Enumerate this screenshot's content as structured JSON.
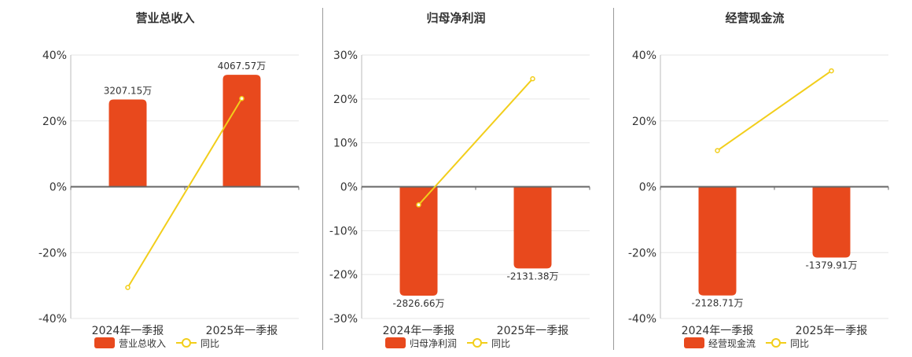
{
  "colors": {
    "bar": "#E8491D",
    "line": "#F2CE1B",
    "axis": "#666666",
    "grid": "#e6e6e6",
    "text": "#333333"
  },
  "chart_data": [
    {
      "type": "bar",
      "title": "营业总收入",
      "categories": [
        "2024年一季报",
        "2025年一季报"
      ],
      "ylim": [
        -40,
        40
      ],
      "ticks": [
        "40%",
        "20%",
        "0%",
        "-20%",
        "-40%"
      ],
      "tick_values": [
        40,
        20,
        0,
        -20,
        -40
      ],
      "series": [
        {
          "name": "营业总收入",
          "kind": "bar",
          "axis_values": [
            26.5,
            34.0
          ],
          "labels": [
            "3207.15万",
            "4067.57万"
          ],
          "values_wan": [
            3207.15,
            4067.57
          ]
        },
        {
          "name": "同比",
          "kind": "line",
          "values": [
            -30.6,
            26.8
          ]
        }
      ],
      "legend": [
        "营业总收入",
        "同比"
      ],
      "grid": true
    },
    {
      "type": "bar",
      "title": "归母净利润",
      "categories": [
        "2024年一季报",
        "2025年一季报"
      ],
      "ylim": [
        -30,
        30
      ],
      "ticks": [
        "30%",
        "20%",
        "10%",
        "0%",
        "-10%",
        "-20%",
        "-30%"
      ],
      "tick_values": [
        30,
        20,
        10,
        0,
        -10,
        -20,
        -30
      ],
      "series": [
        {
          "name": "归母净利润",
          "kind": "bar",
          "axis_values": [
            -24.8,
            -18.6
          ],
          "labels": [
            "-2826.66万",
            "-2131.38万"
          ],
          "values_wan": [
            -2826.66,
            -2131.38
          ]
        },
        {
          "name": "同比",
          "kind": "line",
          "values": [
            -4.1,
            24.6
          ]
        }
      ],
      "legend": [
        "归母净利润",
        "同比"
      ],
      "grid": true
    },
    {
      "type": "bar",
      "title": "经营现金流",
      "categories": [
        "2024年一季报",
        "2025年一季报"
      ],
      "ylim": [
        -40,
        40
      ],
      "ticks": [
        "40%",
        "20%",
        "0%",
        "-20%",
        "-40%"
      ],
      "tick_values": [
        40,
        20,
        0,
        -20,
        -40
      ],
      "series": [
        {
          "name": "经营现金流",
          "kind": "bar",
          "axis_values": [
            -33.0,
            -21.5
          ],
          "labels": [
            "-2128.71万",
            "-1379.91万"
          ],
          "values_wan": [
            -2128.71,
            -1379.91
          ]
        },
        {
          "name": "同比",
          "kind": "line",
          "values": [
            11.0,
            35.2
          ]
        }
      ],
      "legend": [
        "经营现金流",
        "同比"
      ],
      "grid": true
    }
  ]
}
